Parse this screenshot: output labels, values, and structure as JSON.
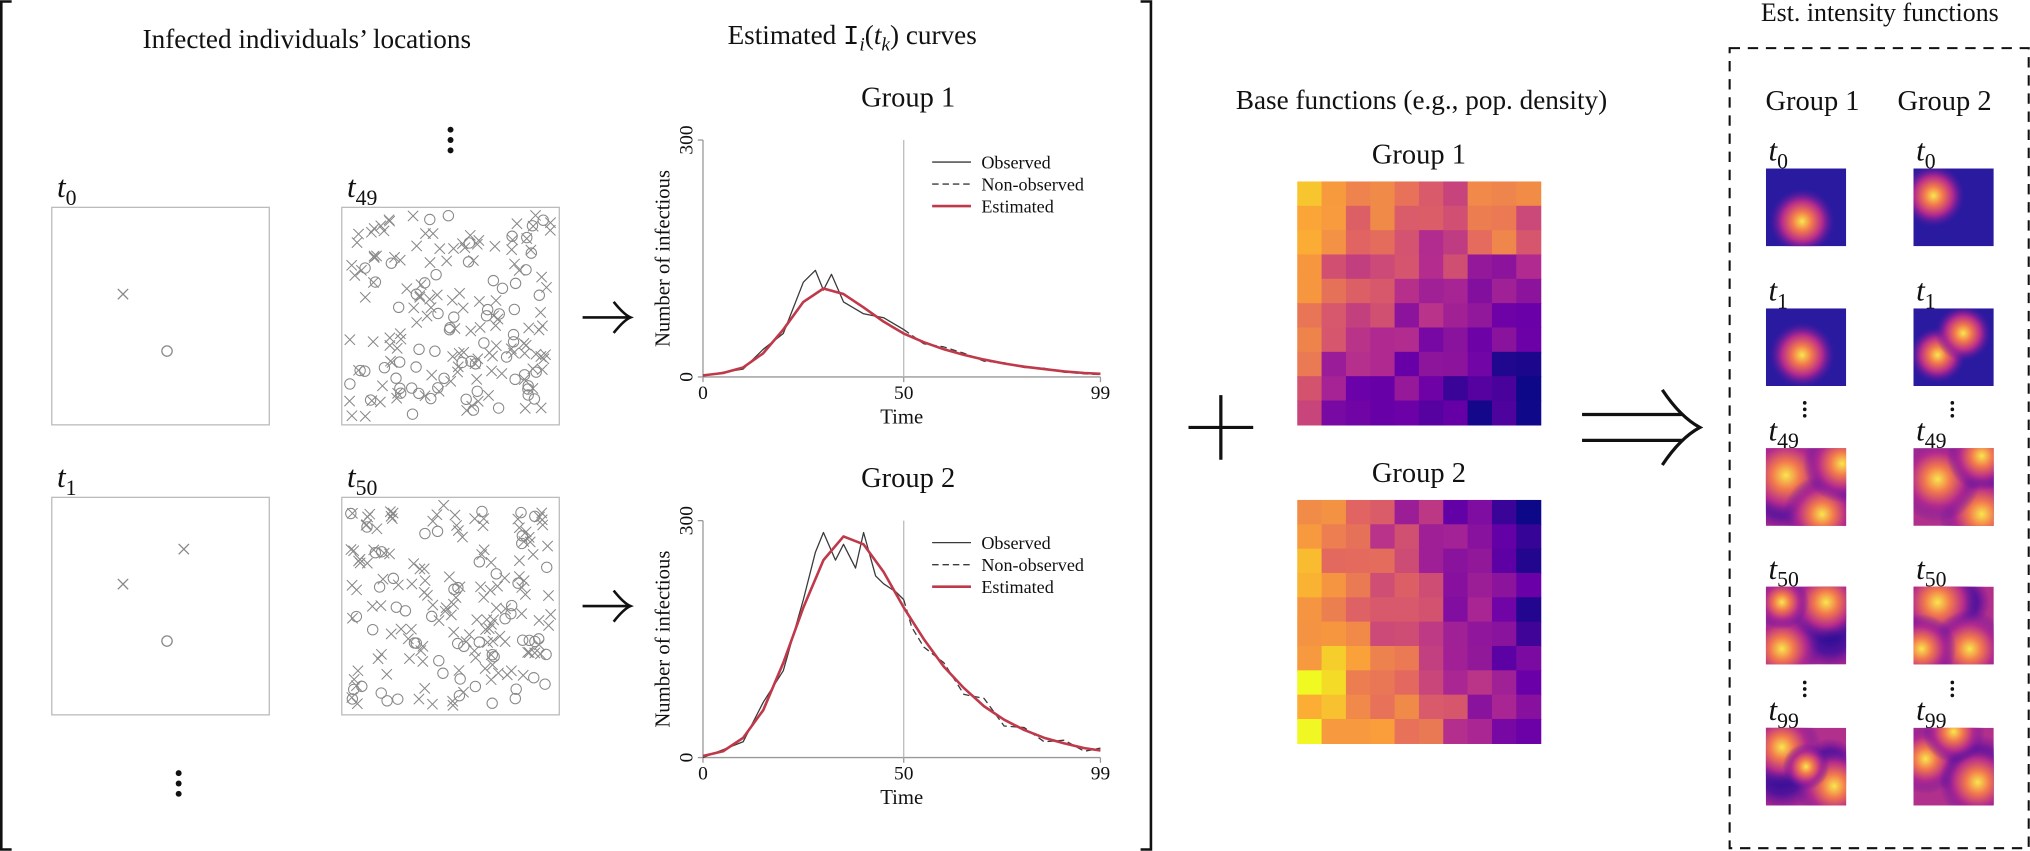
{
  "left_title": "Infected individuals’ locations",
  "snapshots": [
    {
      "t": "t",
      "sub": "0"
    },
    {
      "t": "t",
      "sub": "49"
    },
    {
      "t": "t",
      "sub": "1"
    },
    {
      "t": "t",
      "sub": "50"
    }
  ],
  "curves_title": [
    "Estimated ",
    "I",
    "i",
    "(",
    "t",
    "k",
    ") curves"
  ],
  "chart_data": [
    {
      "type": "line",
      "title": "Group 1",
      "y_label": "Number of infectious",
      "x_label": "Time",
      "xlim": [
        0,
        99
      ],
      "ylim": [
        0,
        300
      ],
      "xticks": [
        0,
        50,
        99
      ],
      "yticks": [
        0,
        300
      ],
      "vline": 50,
      "series": [
        {
          "name": "Observed",
          "color": "#3a3a3a",
          "style": "solid",
          "x": [
            0,
            5,
            10,
            15,
            20,
            25,
            28,
            30,
            32,
            35,
            40,
            45,
            50
          ],
          "values": [
            1,
            6,
            10,
            35,
            55,
            120,
            135,
            110,
            130,
            95,
            80,
            75,
            60
          ]
        },
        {
          "name": "Non-observed",
          "color": "#3a3a3a",
          "style": "dashed",
          "x": [
            50,
            55,
            60,
            65,
            70,
            75,
            80,
            85,
            90,
            95,
            99
          ],
          "values": [
            60,
            42,
            38,
            30,
            20,
            18,
            12,
            11,
            6,
            4,
            3
          ]
        },
        {
          "name": "Estimated",
          "color": "#c0394a",
          "style": "solid",
          "x": [
            0,
            5,
            10,
            15,
            20,
            25,
            30,
            35,
            40,
            45,
            50,
            55,
            60,
            65,
            70,
            75,
            80,
            85,
            90,
            95,
            99
          ],
          "values": [
            2,
            5,
            12,
            30,
            60,
            95,
            112,
            105,
            88,
            70,
            55,
            44,
            35,
            28,
            22,
            17,
            13,
            10,
            7,
            5,
            4
          ]
        }
      ]
    },
    {
      "type": "line",
      "title": "Group 2",
      "y_label": "Number of infectious",
      "x_label": "Time",
      "xlim": [
        0,
        99
      ],
      "ylim": [
        0,
        300
      ],
      "xticks": [
        0,
        50,
        99
      ],
      "yticks": [
        0,
        300
      ],
      "vline": 50,
      "series": [
        {
          "name": "Observed",
          "color": "#3a3a3a",
          "style": "solid",
          "x": [
            0,
            5,
            10,
            15,
            20,
            25,
            28,
            30,
            33,
            35,
            38,
            40,
            43,
            45,
            48,
            50
          ],
          "values": [
            0,
            10,
            20,
            70,
            110,
            200,
            260,
            285,
            250,
            270,
            240,
            285,
            230,
            220,
            210,
            200
          ]
        },
        {
          "name": "Non-observed",
          "color": "#3a3a3a",
          "style": "dashed",
          "x": [
            50,
            52,
            55,
            60,
            65,
            70,
            75,
            80,
            85,
            90,
            95,
            99
          ],
          "values": [
            200,
            165,
            140,
            120,
            80,
            75,
            40,
            38,
            20,
            22,
            8,
            12
          ]
        },
        {
          "name": "Estimated",
          "color": "#c0394a",
          "style": "solid",
          "x": [
            0,
            5,
            10,
            15,
            20,
            25,
            30,
            35,
            40,
            45,
            50,
            55,
            60,
            65,
            70,
            75,
            80,
            85,
            90,
            95,
            99
          ],
          "values": [
            2,
            8,
            25,
            60,
            120,
            190,
            250,
            280,
            270,
            235,
            190,
            150,
            115,
            88,
            65,
            48,
            35,
            25,
            18,
            12,
            9
          ]
        }
      ]
    }
  ],
  "base_title": "Base functions (e.g., pop. density)",
  "base_groups": [
    "Group 1",
    "Group 2"
  ],
  "intensity_title": "Est. intensity functions",
  "intensity_groups": [
    "Group 1",
    "Group 2"
  ],
  "intensity_times": [
    {
      "t": "t",
      "sub": "0"
    },
    {
      "t": "t",
      "sub": "1"
    },
    {
      "t": "t",
      "sub": "49"
    },
    {
      "t": "t",
      "sub": "50"
    },
    {
      "t": "t",
      "sub": "99"
    }
  ]
}
